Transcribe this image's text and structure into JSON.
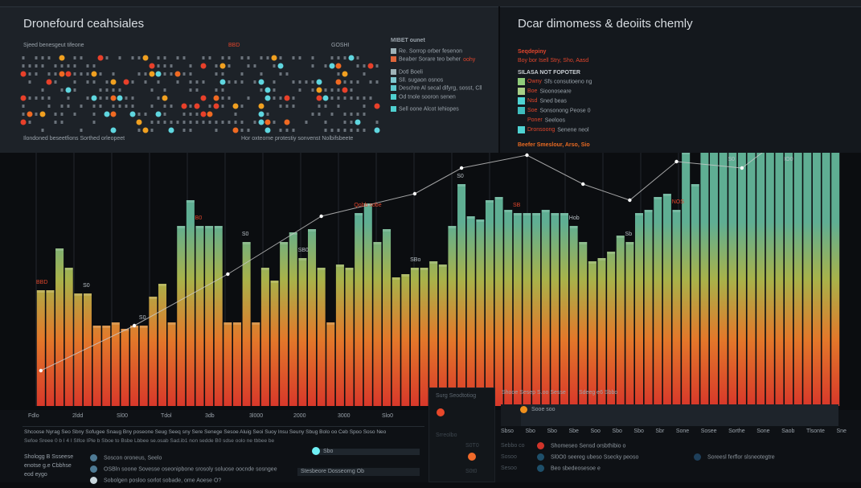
{
  "left_panel": {
    "title": "Dronefourd ceahsiales",
    "subtitle": "Sjeed benesgeut tifeone",
    "marker_label": "BBD",
    "right_label": "GOSHI",
    "footer_left": "Ilondoned beseetfions Sorthed orleopeet",
    "footer_mid": "Hor oxteome protestiy sonvenst Nolbifsbeete",
    "legend_title": "MIBET ounet",
    "legend": [
      {
        "label": "Re. Sorrop orber fesenon",
        "color": "#9fb3b8"
      },
      {
        "label": "Beaber Sorare teo beher",
        "extra": "oohy",
        "color": "#e0653a"
      },
      {
        "label": "Dotl Boeli",
        "color": "#9fb3b8"
      },
      {
        "label": "Sll. sugaon osnos",
        "color": "#7fc7cf"
      },
      {
        "label": "Deschre Al secal difyrg, sosst, Cll",
        "color": "#5fc9cf"
      },
      {
        "label": "Od tnole sooron senen",
        "color": "#4fd0d0"
      },
      {
        "label": "Sell oone Alcot Iehiopes",
        "color": "#4fd0d0"
      }
    ]
  },
  "right_panel": {
    "title": "Dcar dimomess & deoiits chemly",
    "sub_red": "Seqdepiny",
    "sub_red2": "Boy bor Isell Stry, Sho, Aasd",
    "legend_title": "SILASA NOT FOPOTER",
    "legend": [
      {
        "tag": "Owny",
        "label": "Sfs consutioeno ng",
        "color": "#8fcc7a"
      },
      {
        "tag": "Boe",
        "label": "Sioonoseare",
        "color": "#a8cf86"
      },
      {
        "tag": "Nsd",
        "label": "Sned beas",
        "color": "#4fd3d3"
      },
      {
        "tag": "Soe",
        "label": "Sonsonong Peose 0",
        "color": "#3fbdbd"
      },
      {
        "tag": "Poner",
        "label": "Seeloos",
        "color": "#14181d"
      },
      {
        "tag": "Dronsoong",
        "label": "Senene neol",
        "color": "#4fd3d3"
      }
    ],
    "footer_orange": "Beefer Smeslour, Arso, Sio"
  },
  "chart_data": {
    "type": "bar",
    "ylim": [
      0,
      110
    ],
    "values": [
      36,
      36,
      49,
      43,
      35,
      35,
      25,
      25,
      26,
      24,
      25,
      25,
      34,
      38,
      26,
      56,
      64,
      56,
      56,
      56,
      26,
      26,
      51,
      26,
      43,
      39,
      51,
      54,
      46,
      55,
      43,
      26,
      44,
      43,
      60,
      63,
      51,
      55,
      40,
      41,
      43,
      43,
      45,
      44,
      56,
      69,
      59,
      58,
      64,
      65,
      61,
      60,
      60,
      60,
      61,
      60,
      60,
      56,
      51,
      45,
      46,
      48,
      53,
      51,
      60,
      61,
      65,
      66,
      61,
      79,
      69,
      83,
      80,
      81,
      86,
      81,
      85,
      94,
      88,
      94,
      93,
      89,
      95,
      103,
      105,
      103
    ],
    "line": {
      "x": [
        0,
        10,
        20,
        30,
        40,
        45,
        52,
        58,
        63,
        68,
        75,
        80,
        85
      ],
      "y": [
        11,
        25,
        41,
        59,
        66,
        74,
        78,
        69,
        64,
        76,
        74,
        85,
        86
      ]
    },
    "colors": {
      "top": "#5fae93",
      "mid": "#a8b24a",
      "low": "#e3782a",
      "base": "#d8382a",
      "line": "#c9c9c9"
    },
    "annotations": [
      "BBD",
      "S0",
      "S0",
      "B0",
      "S0",
      "SB0",
      "Qobb sobe",
      "SBo",
      "S0",
      "SB",
      "Hob",
      "Sb",
      "NOS",
      "S0",
      "IO0"
    ]
  },
  "bottom": {
    "axis_labels": [
      "Fdlo",
      "2ldd",
      "Sl00",
      "Tdol",
      "3db",
      "3l000",
      "2000",
      "3000",
      "Slo0"
    ],
    "row1": "Shcoose Nyrag Seo Sbny Sofugee Snaug Bny poseone Seug Seeq sny Sere Senege Sesoe Aluig Seoi Suoy Insu Seuny Sbug Bolo oo Ceb Spoo Soso Neo",
    "row2": "Sefoe Sreee 0 b I 4 I Slfce IPle b Sboe to Bsbe Lbbee se.osab Sad.ib1 non sedde B0 sdse oolo ne tbbee be",
    "left_block": [
      "Shologg B Ssseese",
      "enotse g.e Cbbhse",
      "eod eygo"
    ],
    "legend_left": [
      {
        "label": "Soscon oroneus, Seelo",
        "color": "#4e7a94"
      },
      {
        "label": "OSBln soone Sovesse oseonipbone srosoly soluose oocnde sosngee",
        "color": "#4e7a94"
      },
      {
        "label": "Sobolgen posloo sorlot sobade, ome Aoese O?",
        "color": "#c9d6dc"
      }
    ],
    "progress_label": "Sbo",
    "progress_caption": "Stesbeore Dosseorng Ob",
    "mid_panel_title": "Surg Seodtotiog",
    "mid_panel_values": [
      "Srreolbo",
      "S0T0",
      "S0t0"
    ],
    "right_panel_title": "Shooe Sesep S.oo Sesse",
    "right_panel_sub": "Sdeeg e6 Sbbo",
    "right_panel_bar_label": "Sooe soo",
    "progress": 0.06,
    "right_ticks": [
      "Sbso",
      "Sbo",
      "Sbo",
      "Sbe",
      "Soo",
      "Sbo",
      "Sbo",
      "Sbr",
      "Sone",
      "Sosee",
      "Sorthe",
      "Sone",
      "Saob",
      "Tlsonte",
      "Sne"
    ],
    "right_legend": [
      {
        "label": "Shomeseo Sensd orsbthibio o",
        "color": "#d0342a"
      },
      {
        "label": "Sl0O0 seereg ubeso Ssecky peoso",
        "color": "#1e4f6a"
      },
      {
        "label": "Beo sbedeosesoe e",
        "color": "#1e4f6a"
      },
      {
        "label": "Soreesl ferflor slsneotegtre",
        "color": "#1e3f5a"
      }
    ],
    "right_legend_left": [
      "Sebbo co",
      "Sosoo",
      "Sesoo"
    ]
  }
}
